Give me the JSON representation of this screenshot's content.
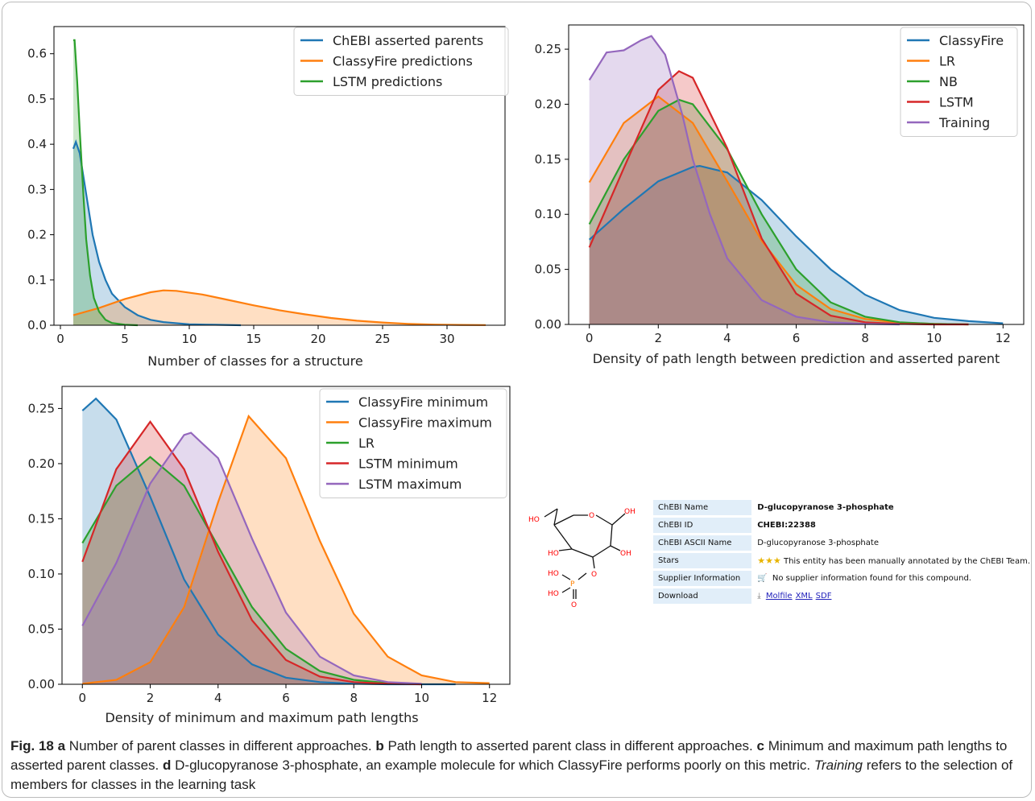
{
  "panels": [
    {
      "id": "a",
      "xlabel": "Number of classes for a structure",
      "xlim": [
        -0.5,
        34.5
      ],
      "ylim": [
        0,
        0.66
      ],
      "xticks": [
        0,
        5,
        10,
        15,
        20,
        25,
        30
      ],
      "yticks": [
        0.0,
        0.1,
        0.2,
        0.3,
        0.4,
        0.5,
        0.6
      ],
      "ytick_labels": [
        "0.0",
        "0.1",
        "0.2",
        "0.3",
        "0.4",
        "0.5",
        "0.6"
      ],
      "series": [
        {
          "name": "ChEBI asserted parents",
          "color": "#1f77b4",
          "x": [
            1,
            1.2,
            1.5,
            2,
            2.5,
            3,
            3.5,
            4,
            5,
            6,
            7,
            8,
            10,
            12,
            14
          ],
          "y": [
            0.39,
            0.405,
            0.38,
            0.29,
            0.2,
            0.14,
            0.1,
            0.07,
            0.04,
            0.022,
            0.012,
            0.007,
            0.002,
            0.001,
            0.0
          ]
        },
        {
          "name": "ClassyFire predictions",
          "color": "#ff7f0e",
          "x": [
            1,
            3,
            5,
            7,
            8,
            9,
            11,
            13,
            15,
            17,
            19,
            21,
            23,
            25,
            27,
            29,
            31,
            33
          ],
          "y": [
            0.022,
            0.038,
            0.058,
            0.073,
            0.077,
            0.076,
            0.068,
            0.056,
            0.044,
            0.033,
            0.024,
            0.016,
            0.01,
            0.006,
            0.003,
            0.0015,
            0.0007,
            0.0003
          ]
        },
        {
          "name": "LSTM predictions",
          "color": "#2ca02c",
          "x": [
            1,
            1.1,
            1.3,
            1.5,
            1.8,
            2,
            2.3,
            2.6,
            3,
            3.5,
            4,
            5,
            6
          ],
          "y": [
            0.63,
            0.63,
            0.54,
            0.43,
            0.28,
            0.19,
            0.11,
            0.06,
            0.03,
            0.012,
            0.005,
            0.001,
            0.0
          ]
        }
      ]
    },
    {
      "id": "b",
      "xlabel": "Density of path length between prediction and asserted parent",
      "xlim": [
        -0.6,
        12.6
      ],
      "ylim": [
        0,
        0.272
      ],
      "xticks": [
        0,
        2,
        4,
        6,
        8,
        10,
        12
      ],
      "yticks": [
        0.0,
        0.05,
        0.1,
        0.15,
        0.2,
        0.25
      ],
      "ytick_labels": [
        "0.00",
        "0.05",
        "0.10",
        "0.15",
        "0.20",
        "0.25"
      ],
      "series": [
        {
          "name": "ClassyFire",
          "color": "#1f77b4",
          "x": [
            0,
            1,
            2,
            3,
            3.2,
            4,
            5,
            6,
            7,
            8,
            9,
            10,
            11,
            12
          ],
          "y": [
            0.077,
            0.105,
            0.13,
            0.143,
            0.144,
            0.138,
            0.113,
            0.08,
            0.05,
            0.027,
            0.013,
            0.006,
            0.003,
            0.001
          ]
        },
        {
          "name": "LR",
          "color": "#ff7f0e",
          "x": [
            0,
            1,
            2,
            3,
            4,
            5,
            6,
            7,
            8,
            9,
            10,
            11
          ],
          "y": [
            0.129,
            0.183,
            0.207,
            0.183,
            0.13,
            0.076,
            0.036,
            0.014,
            0.005,
            0.0015,
            0.0005,
            0.0
          ]
        },
        {
          "name": "NB",
          "color": "#2ca02c",
          "x": [
            0,
            1,
            2,
            2.6,
            3,
            4,
            5,
            6,
            7,
            8,
            9,
            10,
            11
          ],
          "y": [
            0.091,
            0.15,
            0.194,
            0.204,
            0.2,
            0.159,
            0.1,
            0.05,
            0.02,
            0.007,
            0.002,
            0.0005,
            0.0
          ]
        },
        {
          "name": "LSTM",
          "color": "#d62728",
          "x": [
            0,
            1,
            2,
            2.6,
            3,
            4,
            5,
            6,
            7,
            8,
            9,
            10,
            11
          ],
          "y": [
            0.07,
            0.142,
            0.213,
            0.23,
            0.224,
            0.16,
            0.078,
            0.028,
            0.008,
            0.002,
            0.0005,
            0.0,
            0.0
          ]
        },
        {
          "name": "Training",
          "color": "#9467bd",
          "x": [
            0,
            0.5,
            1,
            1.5,
            1.8,
            2.2,
            2.7,
            3,
            3.5,
            4,
            5,
            6,
            7,
            8,
            9
          ],
          "y": [
            0.222,
            0.247,
            0.249,
            0.258,
            0.262,
            0.245,
            0.19,
            0.15,
            0.1,
            0.06,
            0.022,
            0.007,
            0.002,
            0.0005,
            0.0
          ]
        }
      ]
    },
    {
      "id": "c",
      "xlabel": "Density of minimum and maximum path lengths",
      "xlim": [
        -0.6,
        12.6
      ],
      "ylim": [
        0,
        0.27
      ],
      "xticks": [
        0,
        2,
        4,
        6,
        8,
        10,
        12
      ],
      "yticks": [
        0.0,
        0.05,
        0.1,
        0.15,
        0.2,
        0.25
      ],
      "ytick_labels": [
        "0.00",
        "0.05",
        "0.10",
        "0.15",
        "0.20",
        "0.25"
      ],
      "series": [
        {
          "name": "ClassyFire minimum",
          "color": "#1f77b4",
          "x": [
            0,
            0.4,
            1,
            2,
            3,
            4,
            5,
            6,
            7,
            8,
            9,
            10,
            11
          ],
          "y": [
            0.248,
            0.259,
            0.24,
            0.17,
            0.095,
            0.045,
            0.018,
            0.006,
            0.002,
            0.0005,
            0.0,
            0.0,
            0.0
          ]
        },
        {
          "name": "ClassyFire maximum",
          "color": "#ff7f0e",
          "x": [
            0,
            1,
            2,
            3,
            4,
            4.9,
            6,
            7,
            8,
            9,
            10,
            11,
            12
          ],
          "y": [
            0.0005,
            0.004,
            0.02,
            0.07,
            0.165,
            0.243,
            0.205,
            0.13,
            0.064,
            0.025,
            0.008,
            0.002,
            0.001
          ]
        },
        {
          "name": "LR",
          "color": "#2ca02c",
          "x": [
            0,
            1,
            2,
            3,
            4,
            5,
            6,
            7,
            8,
            9,
            10
          ],
          "y": [
            0.128,
            0.18,
            0.206,
            0.18,
            0.125,
            0.07,
            0.032,
            0.012,
            0.004,
            0.001,
            0.0
          ]
        },
        {
          "name": "LSTM minimum",
          "color": "#d62728",
          "x": [
            0,
            1,
            2,
            3,
            4,
            5,
            6,
            7,
            8,
            9,
            10
          ],
          "y": [
            0.111,
            0.195,
            0.238,
            0.195,
            0.12,
            0.058,
            0.022,
            0.007,
            0.002,
            0.0005,
            0.0
          ]
        },
        {
          "name": "LSTM maximum",
          "color": "#9467bd",
          "x": [
            0,
            1,
            2,
            3,
            3.2,
            4,
            5,
            6,
            7,
            8,
            9,
            10
          ],
          "y": [
            0.053,
            0.11,
            0.182,
            0.226,
            0.228,
            0.205,
            0.132,
            0.065,
            0.025,
            0.008,
            0.002,
            0.0005
          ]
        }
      ]
    }
  ],
  "chart_data": [
    {
      "type": "area",
      "panel": "a",
      "xlabel": "Number of classes for a structure",
      "ylabel": "",
      "xlim": [
        -0.5,
        34.5
      ],
      "ylim": [
        0,
        0.66
      ],
      "legend": "top-right",
      "grid": false,
      "series": [
        {
          "name": "ChEBI asserted parents",
          "x": [
            1,
            2,
            3,
            4,
            6,
            8,
            14
          ],
          "y": [
            0.39,
            0.29,
            0.14,
            0.07,
            0.022,
            0.007,
            0.0
          ]
        },
        {
          "name": "ClassyFire predictions",
          "x": [
            1,
            5,
            8,
            13,
            20,
            27,
            33
          ],
          "y": [
            0.022,
            0.058,
            0.077,
            0.056,
            0.02,
            0.003,
            0.0003
          ]
        },
        {
          "name": "LSTM predictions",
          "x": [
            1,
            1.5,
            2,
            3,
            4,
            6
          ],
          "y": [
            0.63,
            0.43,
            0.19,
            0.03,
            0.005,
            0.0
          ]
        }
      ]
    },
    {
      "type": "area",
      "panel": "b",
      "xlabel": "Density of path length between prediction and asserted parent",
      "ylabel": "",
      "xlim": [
        -0.6,
        12.6
      ],
      "ylim": [
        0,
        0.272
      ],
      "legend": "top-right",
      "grid": false,
      "series": [
        {
          "name": "ClassyFire",
          "x": [
            0,
            2,
            3.2,
            5,
            8,
            12
          ],
          "y": [
            0.077,
            0.13,
            0.144,
            0.113,
            0.027,
            0.001
          ]
        },
        {
          "name": "LR",
          "x": [
            0,
            2,
            4,
            6,
            8,
            11
          ],
          "y": [
            0.129,
            0.207,
            0.13,
            0.036,
            0.005,
            0.0
          ]
        },
        {
          "name": "NB",
          "x": [
            0,
            2.6,
            5,
            7,
            11
          ],
          "y": [
            0.091,
            0.204,
            0.1,
            0.02,
            0.0
          ]
        },
        {
          "name": "LSTM",
          "x": [
            0,
            2.6,
            5,
            7,
            11
          ],
          "y": [
            0.07,
            0.23,
            0.078,
            0.008,
            0.0
          ]
        },
        {
          "name": "Training",
          "x": [
            0,
            1.8,
            3,
            5,
            9
          ],
          "y": [
            0.222,
            0.262,
            0.15,
            0.022,
            0.0
          ]
        }
      ]
    },
    {
      "type": "area",
      "panel": "c",
      "xlabel": "Density of minimum and maximum path lengths",
      "ylabel": "",
      "xlim": [
        -0.6,
        12.6
      ],
      "ylim": [
        0,
        0.27
      ],
      "legend": "top-right",
      "grid": false,
      "series": [
        {
          "name": "ClassyFire minimum",
          "x": [
            0,
            0.4,
            2,
            4,
            6,
            11
          ],
          "y": [
            0.248,
            0.259,
            0.17,
            0.045,
            0.006,
            0.0
          ]
        },
        {
          "name": "ClassyFire maximum",
          "x": [
            0,
            3,
            4.9,
            7,
            10,
            12
          ],
          "y": [
            0.0005,
            0.07,
            0.243,
            0.13,
            0.008,
            0.001
          ]
        },
        {
          "name": "LR",
          "x": [
            0,
            2,
            4,
            6,
            10
          ],
          "y": [
            0.128,
            0.206,
            0.125,
            0.032,
            0.0
          ]
        },
        {
          "name": "LSTM minimum",
          "x": [
            0,
            2,
            4,
            6,
            10
          ],
          "y": [
            0.111,
            0.238,
            0.12,
            0.022,
            0.0
          ]
        },
        {
          "name": "LSTM maximum",
          "x": [
            0,
            3.2,
            5,
            7,
            10
          ],
          "y": [
            0.053,
            0.228,
            0.132,
            0.025,
            0.0005
          ]
        }
      ]
    }
  ],
  "molecule": {
    "atoms": [
      "HO",
      "O",
      "OH",
      "HO",
      "OH",
      "O",
      "HO",
      "P",
      "HO",
      "O"
    ],
    "atom_color": "#ff0000",
    "phosphorus_color": "#ff8000"
  },
  "chebi": {
    "rows": [
      {
        "key": "ChEBI Name",
        "value": "D-glucopyranose 3-phosphate"
      },
      {
        "key": "ChEBI ID",
        "value": "CHEBI:22388"
      },
      {
        "key": "ChEBI ASCII Name",
        "value": "D-glucopyranose 3-phosphate"
      },
      {
        "key": "Stars",
        "value": "This entity has been manually annotated by the ChEBI Team.",
        "stars": "★★★"
      },
      {
        "key": "Supplier Information",
        "value": "No supplier information found for this compound."
      },
      {
        "key": "Download",
        "links": [
          "Molfile",
          "XML",
          "SDF"
        ]
      }
    ]
  },
  "caption": {
    "fig_label": "Fig. 18",
    "a_label": "a",
    "a_text": "Number of parent classes in different approaches.",
    "b_label": "b",
    "b_text": "Path length to asserted parent class in different approaches.",
    "c_label": "c",
    "c_text": "Minimum and maximum path lengths to asserted parent classes.",
    "d_label": "d",
    "d_text": "D-glucopyranose 3-phosphate, an example molecule for which ClassyFire performs poorly on this metric.",
    "training_word": "Training",
    "tail_text": "refers to the selection of members for classes in the learning task"
  }
}
